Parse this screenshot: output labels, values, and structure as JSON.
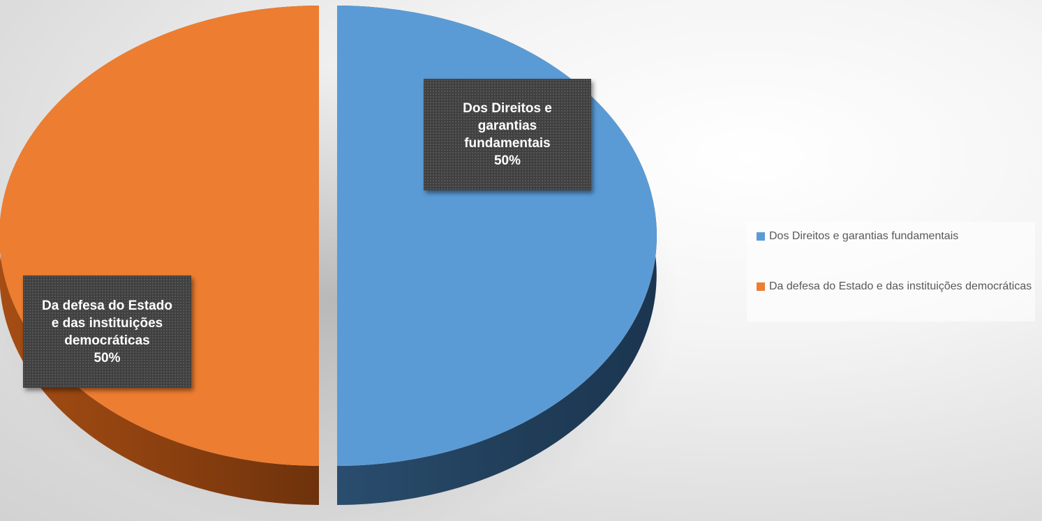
{
  "chart_data": {
    "type": "pie",
    "style": "3d-exploded",
    "categories": [
      "Dos Direitos e garantias fundamentais",
      "Da defesa do Estado e das instituições democráticas"
    ],
    "values": [
      50,
      50
    ],
    "colors": [
      "#5B9BD5",
      "#ED7D31"
    ],
    "data_labels": [
      {
        "lines": [
          "Dos Direitos e",
          "garantias",
          "fundamentais"
        ],
        "percent": "50%"
      },
      {
        "lines": [
          "Da defesa do Estado",
          "e das instituições",
          "democráticas"
        ],
        "percent": "50%"
      }
    ],
    "legend": {
      "position": "right",
      "items": [
        {
          "label": "Dos Direitos e garantias fundamentais",
          "color": "#5B9BD5"
        },
        {
          "label": "Da defesa do Estado e das instituições democráticas",
          "color": "#ED7D31"
        }
      ]
    }
  }
}
